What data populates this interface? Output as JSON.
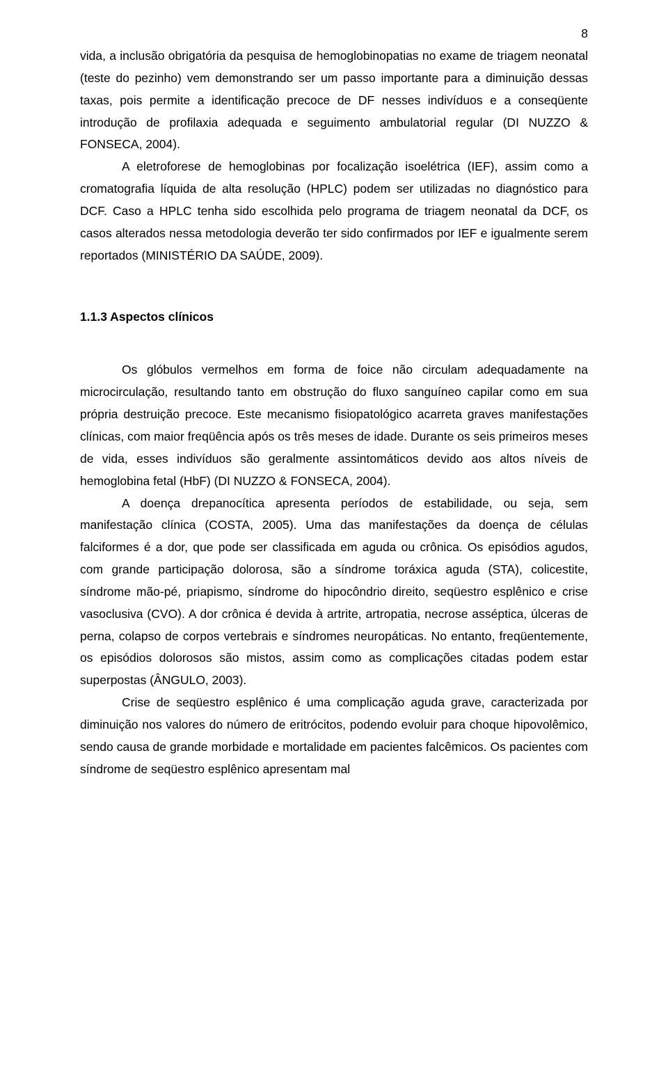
{
  "page": {
    "number": "8",
    "text_color": "#000000",
    "background_color": "#ffffff",
    "fontsize_body": 17.5,
    "line_height": 1.82,
    "font_family": "Arial"
  },
  "paragraphs": {
    "p1": "vida, a inclusão obrigatória da pesquisa de hemoglobinopatias no exame de triagem neonatal (teste do pezinho) vem demonstrando ser um passo importante para a diminuição dessas taxas, pois permite a identificação precoce de DF nesses indivíduos e a conseqüente introdução de profilaxia adequada e seguimento ambulatorial regular (DI NUZZO & FONSECA, 2004).",
    "p2": "A eletroforese de hemoglobinas por focalização isoelétrica (IEF), assim como a cromatografia líquida de alta resolução (HPLC) podem ser utilizadas no diagnóstico para DCF. Caso a HPLC tenha sido escolhida pelo programa de triagem neonatal da DCF, os casos alterados nessa metodologia deverão ter sido confirmados por IEF e igualmente serem reportados (MINISTÉRIO DA SAÚDE, 2009).",
    "heading": "1.1.3 Aspectos clínicos",
    "p3": "Os glóbulos vermelhos em forma de foice não circulam adequadamente na microcirculação, resultando tanto em obstrução do fluxo sanguíneo capilar como em sua própria destruição precoce. Este mecanismo fisiopatológico acarreta graves manifestações clínicas, com maior freqüência após os três meses de idade. Durante os seis primeiros meses de vida, esses indivíduos são geralmente assintomáticos devido aos altos níveis de hemoglobina fetal (HbF) (DI NUZZO & FONSECA, 2004).",
    "p4": "A doença drepanocítica apresenta períodos de estabilidade, ou seja, sem manifestação clínica (COSTA, 2005). Uma das manifestações da doença de células falciformes é a dor, que pode ser classificada em aguda ou crônica. Os episódios agudos, com grande participação dolorosa, são a síndrome toráxica aguda (STA), colicestite, síndrome mão-pé, priapismo, síndrome do hipocôndrio direito, seqüestro esplênico e crise vasoclusiva (CVO). A dor crônica é devida à artrite, artropatia, necrose asséptica, úlceras de perna, colapso de corpos vertebrais e síndromes neuropáticas. No entanto, freqüentemente, os episódios dolorosos são mistos, assim como as complicações citadas podem estar superpostas (ÂNGULO, 2003).",
    "p5": "Crise de seqüestro esplênico é uma complicação aguda grave, caracterizada por diminuição nos valores do número de eritrócitos, podendo evoluir para choque hipovolêmico, sendo causa de grande morbidade e mortalidade em pacientes falcêmicos. Os pacientes com síndrome de seqüestro esplênico apresentam mal"
  }
}
